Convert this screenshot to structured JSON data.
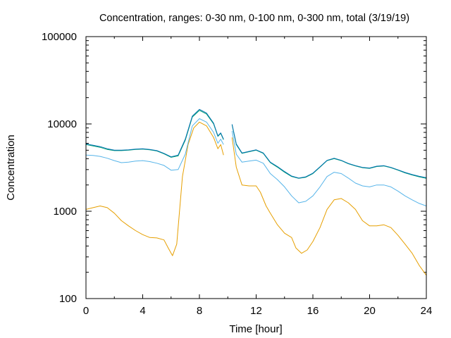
{
  "chart_data": {
    "type": "line",
    "title": "Concentration, ranges: 0-30 nm, 0-100 nm, 0-300 nm, total (3/19/19)",
    "xlabel": "Time [hour]",
    "ylabel": "Concentration",
    "xlim": [
      0,
      24
    ],
    "ylim": [
      100,
      100000
    ],
    "yscale": "log",
    "xticks": [
      "0",
      "4",
      "8",
      "12",
      "16",
      "20",
      "24"
    ],
    "yticks": [
      "100",
      "1000",
      "10000",
      "100000"
    ],
    "grid": false,
    "series": [
      {
        "color": "#e69f00",
        "segments": [
          [
            [
              0,
              1050
            ],
            [
              0.5,
              1100
            ],
            [
              1,
              1150
            ],
            [
              1.5,
              1100
            ],
            [
              2,
              950
            ],
            [
              2.5,
              780
            ],
            [
              3,
              680
            ],
            [
              3.5,
              600
            ],
            [
              4,
              540
            ],
            [
              4.5,
              500
            ],
            [
              5,
              495
            ],
            [
              5.5,
              470
            ],
            [
              5.8,
              380
            ],
            [
              6.1,
              310
            ],
            [
              6.4,
              420
            ],
            [
              6.8,
              2500
            ],
            [
              7.2,
              5800
            ],
            [
              7.6,
              9000
            ],
            [
              8,
              10500
            ],
            [
              8.5,
              9500
            ],
            [
              9,
              7000
            ],
            [
              9.3,
              5200
            ],
            [
              9.5,
              5800
            ],
            [
              9.7,
              4400
            ]
          ],
          [
            [
              10.3,
              7000
            ],
            [
              10.6,
              3200
            ],
            [
              11,
              2000
            ],
            [
              11.5,
              1950
            ],
            [
              12,
              1950
            ],
            [
              12.3,
              1650
            ],
            [
              12.7,
              1150
            ],
            [
              13,
              950
            ],
            [
              13.5,
              700
            ],
            [
              14,
              560
            ],
            [
              14.5,
              500
            ],
            [
              14.8,
              380
            ],
            [
              15.2,
              330
            ],
            [
              15.6,
              360
            ],
            [
              16,
              450
            ],
            [
              16.5,
              650
            ],
            [
              17,
              1050
            ],
            [
              17.5,
              1350
            ],
            [
              18,
              1400
            ],
            [
              18.5,
              1250
            ],
            [
              19,
              1050
            ],
            [
              19.5,
              780
            ],
            [
              20,
              680
            ],
            [
              20.5,
              680
            ],
            [
              21,
              700
            ],
            [
              21.5,
              650
            ],
            [
              22,
              530
            ],
            [
              22.5,
              420
            ],
            [
              23,
              330
            ],
            [
              23.5,
              240
            ],
            [
              24,
              185
            ]
          ]
        ]
      },
      {
        "color": "#56b4e9",
        "segments": [
          [
            [
              0,
              4400
            ],
            [
              0.5,
              4350
            ],
            [
              1,
              4250
            ],
            [
              1.5,
              4050
            ],
            [
              2,
              3800
            ],
            [
              2.5,
              3600
            ],
            [
              3,
              3650
            ],
            [
              3.5,
              3750
            ],
            [
              4,
              3800
            ],
            [
              4.5,
              3700
            ],
            [
              5,
              3550
            ],
            [
              5.5,
              3350
            ],
            [
              6,
              2950
            ],
            [
              6.5,
              3000
            ],
            [
              7,
              4500
            ],
            [
              7.5,
              9500
            ],
            [
              8,
              11500
            ],
            [
              8.5,
              10500
            ],
            [
              9,
              8000
            ],
            [
              9.3,
              6000
            ],
            [
              9.5,
              6700
            ],
            [
              9.7,
              5800
            ]
          ],
          [
            [
              10.3,
              8300
            ],
            [
              10.6,
              4500
            ],
            [
              11,
              3650
            ],
            [
              11.5,
              3750
            ],
            [
              12,
              3850
            ],
            [
              12.5,
              3550
            ],
            [
              13,
              2700
            ],
            [
              13.5,
              2300
            ],
            [
              14,
              1900
            ],
            [
              14.5,
              1500
            ],
            [
              15,
              1250
            ],
            [
              15.5,
              1300
            ],
            [
              16,
              1500
            ],
            [
              16.5,
              1900
            ],
            [
              17,
              2500
            ],
            [
              17.5,
              2800
            ],
            [
              18,
              2700
            ],
            [
              18.5,
              2400
            ],
            [
              19,
              2100
            ],
            [
              19.5,
              1950
            ],
            [
              20,
              1900
            ],
            [
              20.5,
              2000
            ],
            [
              21,
              2000
            ],
            [
              21.5,
              1900
            ],
            [
              22,
              1700
            ],
            [
              22.5,
              1500
            ],
            [
              23,
              1350
            ],
            [
              23.5,
              1230
            ],
            [
              24,
              1150
            ]
          ]
        ]
      },
      {
        "color": "#009e73",
        "segments": [
          [
            [
              0,
              5800
            ],
            [
              0.5,
              5600
            ],
            [
              1,
              5400
            ],
            [
              1.5,
              5100
            ],
            [
              2,
              4950
            ],
            [
              2.5,
              4950
            ],
            [
              3,
              5000
            ],
            [
              3.5,
              5100
            ],
            [
              4,
              5150
            ],
            [
              4.5,
              5050
            ],
            [
              5,
              4900
            ],
            [
              5.5,
              4550
            ],
            [
              6,
              4150
            ],
            [
              6.5,
              4300
            ],
            [
              7,
              6500
            ],
            [
              7.5,
              12000
            ],
            [
              8,
              14300
            ],
            [
              8.5,
              13000
            ],
            [
              9,
              10000
            ],
            [
              9.3,
              7200
            ],
            [
              9.5,
              7800
            ],
            [
              9.7,
              6600
            ]
          ],
          [
            [
              10.3,
              9800
            ],
            [
              10.6,
              5800
            ],
            [
              11,
              4600
            ],
            [
              11.5,
              4800
            ],
            [
              12,
              5000
            ],
            [
              12.5,
              4600
            ],
            [
              13,
              3600
            ],
            [
              13.5,
              3200
            ],
            [
              14,
              2800
            ],
            [
              14.5,
              2500
            ],
            [
              15,
              2380
            ],
            [
              15.5,
              2450
            ],
            [
              16,
              2700
            ],
            [
              16.5,
              3200
            ],
            [
              17,
              3800
            ],
            [
              17.5,
              4000
            ],
            [
              18,
              3800
            ],
            [
              18.5,
              3500
            ],
            [
              19,
              3300
            ],
            [
              19.5,
              3150
            ],
            [
              20,
              3100
            ],
            [
              20.5,
              3250
            ],
            [
              21,
              3300
            ],
            [
              21.5,
              3150
            ],
            [
              22,
              2950
            ],
            [
              22.5,
              2750
            ],
            [
              23,
              2600
            ],
            [
              23.5,
              2480
            ],
            [
              24,
              2380
            ]
          ]
        ]
      },
      {
        "color": "#0072b2",
        "segments": [
          [
            [
              0,
              5900
            ],
            [
              0.5,
              5700
            ],
            [
              1,
              5500
            ],
            [
              1.5,
              5200
            ],
            [
              2,
              5000
            ],
            [
              2.5,
              5000
            ],
            [
              3,
              5050
            ],
            [
              3.5,
              5150
            ],
            [
              4,
              5200
            ],
            [
              4.5,
              5100
            ],
            [
              5,
              4950
            ],
            [
              5.5,
              4600
            ],
            [
              6,
              4200
            ],
            [
              6.5,
              4400
            ],
            [
              7,
              6700
            ],
            [
              7.5,
              12300
            ],
            [
              8,
              14700
            ],
            [
              8.5,
              13300
            ],
            [
              9,
              10200
            ],
            [
              9.3,
              7300
            ],
            [
              9.5,
              7900
            ],
            [
              9.7,
              6700
            ]
          ],
          [
            [
              10.3,
              9900
            ],
            [
              10.6,
              5900
            ],
            [
              11,
              4650
            ],
            [
              11.5,
              4850
            ],
            [
              12,
              5050
            ],
            [
              12.5,
              4650
            ],
            [
              13,
              3650
            ],
            [
              13.5,
              3250
            ],
            [
              14,
              2850
            ],
            [
              14.5,
              2530
            ],
            [
              15,
              2400
            ],
            [
              15.5,
              2480
            ],
            [
              16,
              2730
            ],
            [
              16.5,
              3230
            ],
            [
              17,
              3830
            ],
            [
              17.5,
              4050
            ],
            [
              18,
              3830
            ],
            [
              18.5,
              3530
            ],
            [
              19,
              3330
            ],
            [
              19.5,
              3180
            ],
            [
              20,
              3130
            ],
            [
              20.5,
              3280
            ],
            [
              21,
              3330
            ],
            [
              21.5,
              3180
            ],
            [
              22,
              2980
            ],
            [
              22.5,
              2780
            ],
            [
              23,
              2630
            ],
            [
              23.5,
              2510
            ],
            [
              24,
              2420
            ]
          ]
        ]
      }
    ]
  }
}
